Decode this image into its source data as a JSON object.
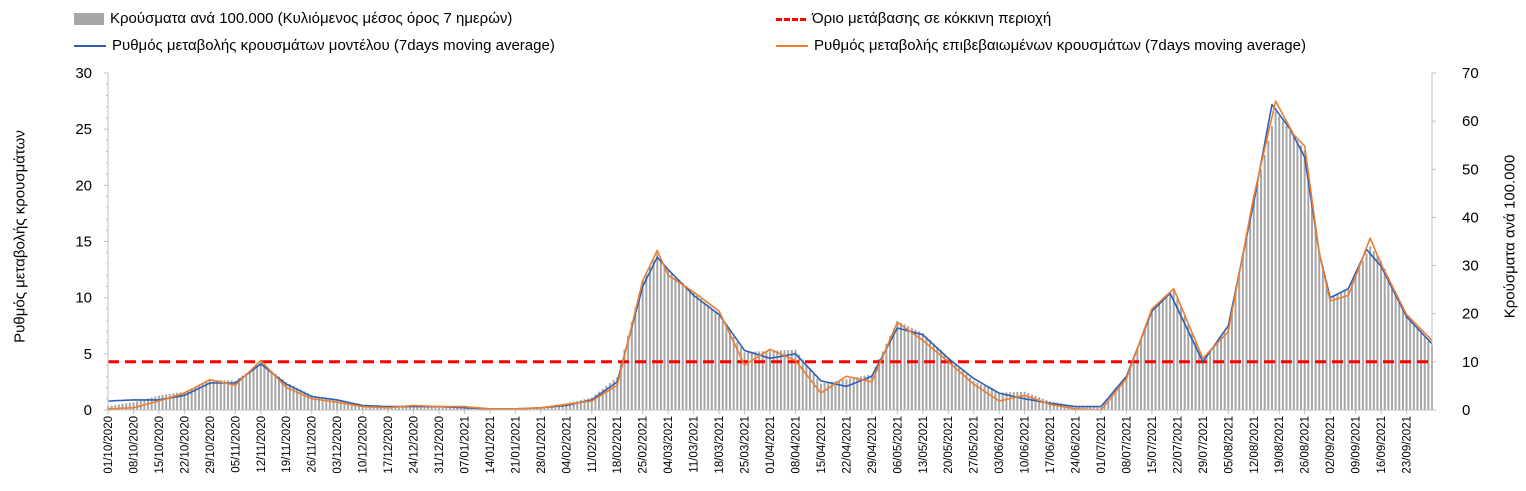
{
  "legend": {
    "bars": "Κρούσματα ανά 100.000 (Κυλιόμενος μέσος όρος 7 ημερών)",
    "threshold": "Όριο μετάβασης σε κόκκινη περιοχή",
    "model": "Ρυθμός μεταβολής κρουσμάτων μοντέλου (7days moving average)",
    "confirmed": "Ρυθμός μεταβολής επιβεβαιωμένων κρουσμάτων (7days moving average)"
  },
  "colors": {
    "bars": "#a6a6a6",
    "model": "#2e5fb3",
    "confirmed": "#ed7d31",
    "threshold": "#ff0000"
  },
  "chart_data": {
    "type": "bar",
    "title": "",
    "ylabel_left": "Ρυθμός μεταβολής κρουσμάτων",
    "ylabel_right": "Κρούσματα ανά 100.000",
    "ylim_left": [
      0,
      30
    ],
    "yticks_left": [
      0,
      5,
      10,
      15,
      20,
      25,
      30
    ],
    "ylim_right": [
      0,
      70
    ],
    "yticks_right": [
      0,
      10,
      20,
      30,
      40,
      50,
      60,
      70
    ],
    "x_start": "01/10/2020",
    "x_end": "30/09/2021",
    "xtick_labels": [
      "01/10/2020",
      "08/10/2020",
      "15/10/2020",
      "22/10/2020",
      "29/10/2020",
      "05/11/2020",
      "12/11/2020",
      "19/11/2020",
      "26/11/2020",
      "03/12/2020",
      "10/12/2020",
      "17/12/2020",
      "24/12/2020",
      "31/12/2020",
      "07/01/2021",
      "14/01/2021",
      "21/01/2021",
      "28/01/2021",
      "04/02/2021",
      "11/02/2021",
      "18/02/2021",
      "25/02/2021",
      "04/03/2021",
      "11/03/2021",
      "18/03/2021",
      "25/03/2021",
      "01/04/2021",
      "08/04/2021",
      "15/04/2021",
      "22/04/2021",
      "29/04/2021",
      "06/05/2021",
      "13/05/2021",
      "20/05/2021",
      "27/05/2021",
      "03/06/2021",
      "10/06/2021",
      "17/06/2021",
      "24/06/2021",
      "01/07/2021",
      "08/07/2021",
      "15/07/2021",
      "22/07/2021",
      "29/07/2021",
      "05/08/2021",
      "12/08/2021",
      "19/08/2021",
      "26/08/2021",
      "02/09/2021",
      "09/09/2021",
      "16/09/2021",
      "23/09/2021"
    ],
    "threshold_left_axis": 4.3,
    "series": [
      {
        "name": "Ρυθμός μεταβολής κρουσμάτων μοντέλου (7days moving average)",
        "axis": "left",
        "points": [
          [
            "01/10/2020",
            0.8
          ],
          [
            "08/10/2020",
            0.9
          ],
          [
            "15/10/2020",
            0.9
          ],
          [
            "22/10/2020",
            1.3
          ],
          [
            "29/10/2020",
            2.4
          ],
          [
            "05/11/2020",
            2.4
          ],
          [
            "12/11/2020",
            4.1
          ],
          [
            "19/11/2020",
            2.3
          ],
          [
            "26/11/2020",
            1.2
          ],
          [
            "03/12/2020",
            0.9
          ],
          [
            "10/12/2020",
            0.4
          ],
          [
            "17/12/2020",
            0.3
          ],
          [
            "24/12/2020",
            0.3
          ],
          [
            "31/12/2020",
            0.3
          ],
          [
            "07/01/2021",
            0.2
          ],
          [
            "14/01/2021",
            0.1
          ],
          [
            "21/01/2021",
            0.1
          ],
          [
            "28/01/2021",
            0.2
          ],
          [
            "04/02/2021",
            0.4
          ],
          [
            "11/02/2021",
            0.9
          ],
          [
            "18/02/2021",
            2.5
          ],
          [
            "25/02/2021",
            11.0
          ],
          [
            "01/03/2021",
            13.6
          ],
          [
            "04/03/2021",
            12.5
          ],
          [
            "11/03/2021",
            10.2
          ],
          [
            "18/03/2021",
            8.5
          ],
          [
            "25/03/2021",
            5.3
          ],
          [
            "01/04/2021",
            4.6
          ],
          [
            "08/04/2021",
            5.0
          ],
          [
            "15/04/2021",
            2.6
          ],
          [
            "22/04/2021",
            2.1
          ],
          [
            "29/04/2021",
            3.0
          ],
          [
            "06/05/2021",
            7.3
          ],
          [
            "13/05/2021",
            6.7
          ],
          [
            "20/05/2021",
            4.6
          ],
          [
            "27/05/2021",
            2.8
          ],
          [
            "03/06/2021",
            1.5
          ],
          [
            "10/06/2021",
            1.0
          ],
          [
            "17/06/2021",
            0.6
          ],
          [
            "24/06/2021",
            0.3
          ],
          [
            "01/07/2021",
            0.3
          ],
          [
            "08/07/2021",
            3.0
          ],
          [
            "15/07/2021",
            8.8
          ],
          [
            "20/07/2021",
            10.4
          ],
          [
            "29/07/2021",
            4.3
          ],
          [
            "05/08/2021",
            7.5
          ],
          [
            "12/08/2021",
            18.5
          ],
          [
            "17/08/2021",
            27.2
          ],
          [
            "22/08/2021",
            25.0
          ],
          [
            "26/08/2021",
            22.5
          ],
          [
            "30/08/2021",
            14.0
          ],
          [
            "02/09/2021",
            10.0
          ],
          [
            "07/09/2021",
            10.8
          ],
          [
            "12/09/2021",
            14.3
          ],
          [
            "16/09/2021",
            12.8
          ],
          [
            "23/09/2021",
            8.3
          ],
          [
            "30/09/2021",
            5.9
          ]
        ]
      },
      {
        "name": "Ρυθμός μεταβολής επιβεβαιωμένων κρουσμάτων (7days moving average)",
        "axis": "left",
        "points": [
          [
            "01/10/2020",
            0.1
          ],
          [
            "08/10/2020",
            0.2
          ],
          [
            "15/10/2020",
            0.8
          ],
          [
            "22/10/2020",
            1.5
          ],
          [
            "29/10/2020",
            2.7
          ],
          [
            "05/11/2020",
            2.2
          ],
          [
            "12/11/2020",
            4.4
          ],
          [
            "19/11/2020",
            2.0
          ],
          [
            "26/11/2020",
            1.0
          ],
          [
            "03/12/2020",
            0.7
          ],
          [
            "10/12/2020",
            0.3
          ],
          [
            "17/12/2020",
            0.2
          ],
          [
            "24/12/2020",
            0.4
          ],
          [
            "31/12/2020",
            0.3
          ],
          [
            "07/01/2021",
            0.3
          ],
          [
            "14/01/2021",
            0.1
          ],
          [
            "21/01/2021",
            0.1
          ],
          [
            "28/01/2021",
            0.2
          ],
          [
            "04/02/2021",
            0.5
          ],
          [
            "11/02/2021",
            0.8
          ],
          [
            "18/02/2021",
            2.2
          ],
          [
            "25/02/2021",
            11.5
          ],
          [
            "01/03/2021",
            14.2
          ],
          [
            "04/03/2021",
            12.0
          ],
          [
            "11/03/2021",
            10.5
          ],
          [
            "18/03/2021",
            8.8
          ],
          [
            "25/03/2021",
            4.0
          ],
          [
            "01/04/2021",
            5.4
          ],
          [
            "08/04/2021",
            4.4
          ],
          [
            "15/04/2021",
            1.5
          ],
          [
            "22/04/2021",
            3.0
          ],
          [
            "29/04/2021",
            2.5
          ],
          [
            "06/05/2021",
            7.8
          ],
          [
            "13/05/2021",
            6.2
          ],
          [
            "20/05/2021",
            4.3
          ],
          [
            "27/05/2021",
            2.3
          ],
          [
            "03/06/2021",
            0.8
          ],
          [
            "10/06/2021",
            1.3
          ],
          [
            "17/06/2021",
            0.5
          ],
          [
            "24/06/2021",
            0.1
          ],
          [
            "01/07/2021",
            0.0
          ],
          [
            "08/07/2021",
            2.8
          ],
          [
            "15/07/2021",
            9.0
          ],
          [
            "21/07/2021",
            10.8
          ],
          [
            "29/07/2021",
            4.6
          ],
          [
            "05/08/2021",
            7.0
          ],
          [
            "12/08/2021",
            19.0
          ],
          [
            "18/08/2021",
            27.5
          ],
          [
            "23/08/2021",
            24.5
          ],
          [
            "26/08/2021",
            23.5
          ],
          [
            "30/08/2021",
            14.0
          ],
          [
            "02/09/2021",
            9.7
          ],
          [
            "07/09/2021",
            10.2
          ],
          [
            "13/09/2021",
            15.3
          ],
          [
            "16/09/2021",
            13.0
          ],
          [
            "23/09/2021",
            8.5
          ],
          [
            "30/09/2021",
            6.2
          ]
        ]
      },
      {
        "name": "Κρούσματα ανά 100.000 (Κυλιόμενος μέσος όρος 7 ημερών)",
        "axis": "right",
        "points": [
          [
            "01/10/2020",
            0.8
          ],
          [
            "08/10/2020",
            1.6
          ],
          [
            "15/10/2020",
            3.0
          ],
          [
            "22/10/2020",
            3.8
          ],
          [
            "29/10/2020",
            6.3
          ],
          [
            "05/11/2020",
            6.1
          ],
          [
            "12/11/2020",
            9.8
          ],
          [
            "19/11/2020",
            5.8
          ],
          [
            "26/11/2020",
            3.1
          ],
          [
            "03/12/2020",
            2.0
          ],
          [
            "10/12/2020",
            1.1
          ],
          [
            "17/12/2020",
            0.8
          ],
          [
            "24/12/2020",
            0.9
          ],
          [
            "31/12/2020",
            0.8
          ],
          [
            "07/01/2021",
            0.6
          ],
          [
            "14/01/2021",
            0.3
          ],
          [
            "21/01/2021",
            0.3
          ],
          [
            "28/01/2021",
            0.5
          ],
          [
            "04/02/2021",
            1.4
          ],
          [
            "11/02/2021",
            2.6
          ],
          [
            "18/02/2021",
            6.8
          ],
          [
            "25/02/2021",
            27.0
          ],
          [
            "01/03/2021",
            32.5
          ],
          [
            "04/03/2021",
            29.0
          ],
          [
            "11/03/2021",
            24.5
          ],
          [
            "18/03/2021",
            19.5
          ],
          [
            "25/03/2021",
            12.0
          ],
          [
            "01/04/2021",
            12.3
          ],
          [
            "08/04/2021",
            12.5
          ],
          [
            "15/04/2021",
            5.5
          ],
          [
            "22/04/2021",
            6.4
          ],
          [
            "29/04/2021",
            7.4
          ],
          [
            "06/05/2021",
            18.5
          ],
          [
            "13/05/2021",
            16.0
          ],
          [
            "20/05/2021",
            11.0
          ],
          [
            "27/05/2021",
            6.0
          ],
          [
            "03/06/2021",
            3.6
          ],
          [
            "10/06/2021",
            3.8
          ],
          [
            "17/06/2021",
            1.8
          ],
          [
            "24/06/2021",
            0.8
          ],
          [
            "01/07/2021",
            0.5
          ],
          [
            "08/07/2021",
            6.5
          ],
          [
            "15/07/2021",
            21.0
          ],
          [
            "21/07/2021",
            25.0
          ],
          [
            "29/07/2021",
            10.5
          ],
          [
            "05/08/2021",
            17.0
          ],
          [
            "12/08/2021",
            44.0
          ],
          [
            "18/08/2021",
            62.0
          ],
          [
            "23/08/2021",
            57.0
          ],
          [
            "26/08/2021",
            54.0
          ],
          [
            "30/08/2021",
            33.0
          ],
          [
            "02/09/2021",
            23.5
          ],
          [
            "07/09/2021",
            25.0
          ],
          [
            "13/09/2021",
            34.0
          ],
          [
            "16/09/2021",
            31.0
          ],
          [
            "23/09/2021",
            19.5
          ],
          [
            "30/09/2021",
            13.5
          ]
        ]
      }
    ]
  }
}
